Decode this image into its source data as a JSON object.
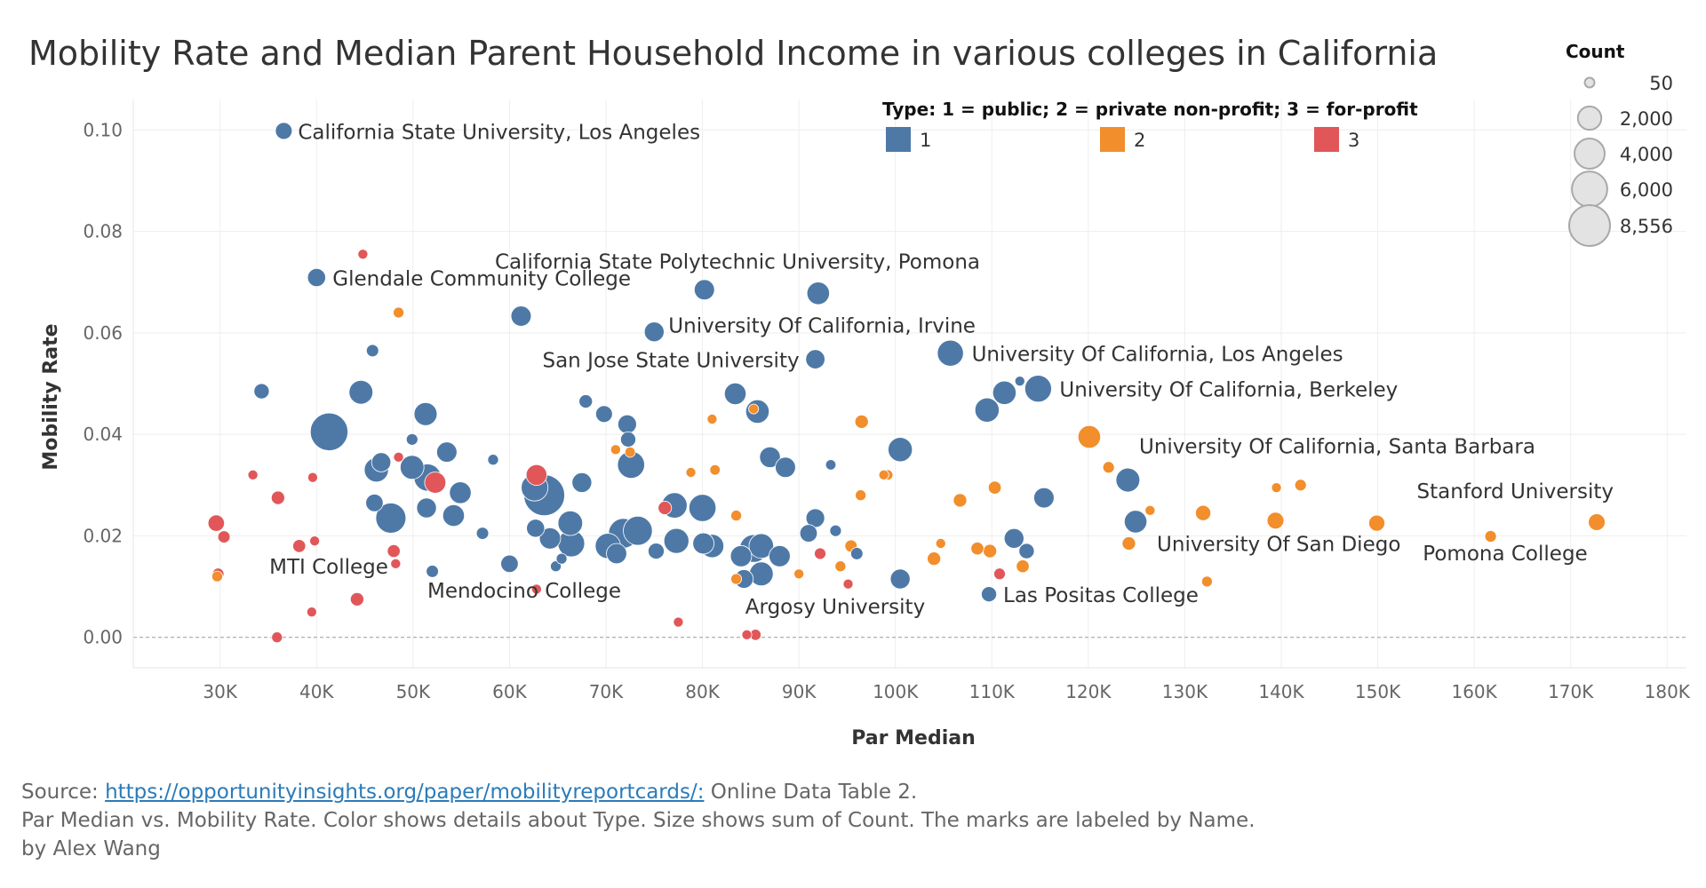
{
  "title": "Mobility Rate and Median Parent Household Income in various colleges in California",
  "footer": {
    "source_prefix": "Source: ",
    "source_link": "https://opportunityinsights.org/paper/mobilityreportcards/:",
    "source_suffix": " Online Data Table 2.",
    "description": "Par Median vs. Mobility Rate.  Color shows details about Type.  Size shows sum of Count.  The marks are labeled by Name.",
    "byline": "by Alex Wang"
  },
  "chart_data": {
    "type": "scatter",
    "xlabel": "Par Median",
    "ylabel": "Mobility Rate",
    "xlim": [
      21000,
      182000
    ],
    "ylim": [
      -0.006,
      0.106
    ],
    "x_ticks": [
      30000,
      40000,
      50000,
      60000,
      70000,
      80000,
      90000,
      100000,
      110000,
      120000,
      130000,
      140000,
      150000,
      160000,
      170000,
      180000
    ],
    "x_tick_labels": [
      "30K",
      "40K",
      "50K",
      "60K",
      "70K",
      "80K",
      "90K",
      "100K",
      "110K",
      "120K",
      "130K",
      "140K",
      "150K",
      "160K",
      "170K",
      "180K"
    ],
    "y_ticks": [
      0.0,
      0.02,
      0.04,
      0.06,
      0.08,
      0.1
    ],
    "y_tick_labels": [
      "0.00",
      "0.02",
      "0.04",
      "0.06",
      "0.08",
      "0.10"
    ],
    "grid": true,
    "zero_line": "dashed",
    "color_legend": {
      "title": "Type: 1 = public; 2 = private non-profit; 3 = for-profit",
      "placement": "top",
      "items": [
        {
          "label": "1",
          "type": 1,
          "color": "#4e79a7"
        },
        {
          "label": "2",
          "type": 2,
          "color": "#f28e2b"
        },
        {
          "label": "3",
          "type": 3,
          "color": "#e15759"
        }
      ]
    },
    "size_legend": {
      "title": "Count",
      "placement": "top-right",
      "items": [
        {
          "label": "50",
          "value": 50
        },
        {
          "label": "2,000",
          "value": 2000
        },
        {
          "label": "4,000",
          "value": 4000
        },
        {
          "label": "6,000",
          "value": 6000
        },
        {
          "label": "8,556",
          "value": 8556
        }
      ],
      "max_count": 8556
    },
    "points": [
      {
        "x": 36600,
        "y": 0.0998,
        "type": 1,
        "count": 700,
        "name": "California State University, Los Angeles"
      },
      {
        "x": 40000,
        "y": 0.0709,
        "type": 1,
        "count": 900,
        "name": "Glendale Community College"
      },
      {
        "x": 80200,
        "y": 0.0685,
        "type": 1,
        "count": 1300,
        "name": ""
      },
      {
        "x": 92000,
        "y": 0.0678,
        "type": 1,
        "count": 1800,
        "name": "California State Polytechnic University, Pomona"
      },
      {
        "x": 75000,
        "y": 0.0602,
        "type": 1,
        "count": 1200,
        "name": "University Of California, Irvine"
      },
      {
        "x": 61200,
        "y": 0.0633,
        "type": 1,
        "count": 1300,
        "name": ""
      },
      {
        "x": 91700,
        "y": 0.0548,
        "type": 1,
        "count": 1100,
        "name": "San Jose State University"
      },
      {
        "x": 105700,
        "y": 0.056,
        "type": 1,
        "count": 2700,
        "name": "University Of California, Los Angeles"
      },
      {
        "x": 114800,
        "y": 0.049,
        "type": 1,
        "count": 2900,
        "name": "University Of California, Berkeley"
      },
      {
        "x": 111300,
        "y": 0.0482,
        "type": 1,
        "count": 2000,
        "name": ""
      },
      {
        "x": 109500,
        "y": 0.0448,
        "type": 1,
        "count": 2200,
        "name": ""
      },
      {
        "x": 120100,
        "y": 0.0395,
        "type": 2,
        "count": 1800,
        "name": ""
      },
      {
        "x": 124100,
        "y": 0.031,
        "type": 1,
        "count": 2100,
        "name": "University Of California, Santa Barbara"
      },
      {
        "x": 172700,
        "y": 0.0227,
        "type": 2,
        "count": 700,
        "name": "Stanford University"
      },
      {
        "x": 124900,
        "y": 0.0228,
        "type": 1,
        "count": 1800,
        "name": "University Of San Diego"
      },
      {
        "x": 161700,
        "y": 0.0199,
        "type": 2,
        "count": 150,
        "name": "Pomona College"
      },
      {
        "x": 109700,
        "y": 0.0085,
        "type": 1,
        "count": 500,
        "name": "Las Positas College"
      },
      {
        "x": 29600,
        "y": 0.0225,
        "type": 3,
        "count": 650,
        "name": ""
      },
      {
        "x": 30400,
        "y": 0.0198,
        "type": 3,
        "count": 200,
        "name": ""
      },
      {
        "x": 38200,
        "y": 0.018,
        "type": 3,
        "count": 250,
        "name": "MTI College"
      },
      {
        "x": 34300,
        "y": 0.0485,
        "type": 1,
        "count": 500,
        "name": ""
      },
      {
        "x": 62800,
        "y": 0.0095,
        "type": 3,
        "count": 60,
        "name": "Mendocino College"
      },
      {
        "x": 85500,
        "y": 0.0005,
        "type": 3,
        "count": 120,
        "name": "Argosy University"
      },
      {
        "x": 41300,
        "y": 0.0405,
        "type": 1,
        "count": 7000,
        "name": ""
      },
      {
        "x": 44600,
        "y": 0.0483,
        "type": 1,
        "count": 2100,
        "name": ""
      },
      {
        "x": 45800,
        "y": 0.0565,
        "type": 1,
        "count": 200,
        "name": ""
      },
      {
        "x": 51300,
        "y": 0.044,
        "type": 1,
        "count": 1900,
        "name": ""
      },
      {
        "x": 49900,
        "y": 0.039,
        "type": 1,
        "count": 150,
        "name": ""
      },
      {
        "x": 46200,
        "y": 0.033,
        "type": 1,
        "count": 2200,
        "name": ""
      },
      {
        "x": 46700,
        "y": 0.0345,
        "type": 1,
        "count": 1100,
        "name": ""
      },
      {
        "x": 49900,
        "y": 0.0335,
        "type": 1,
        "count": 2100,
        "name": ""
      },
      {
        "x": 51500,
        "y": 0.0315,
        "type": 1,
        "count": 3000,
        "name": ""
      },
      {
        "x": 52300,
        "y": 0.0305,
        "type": 3,
        "count": 1500,
        "name": ""
      },
      {
        "x": 53500,
        "y": 0.0365,
        "type": 1,
        "count": 1300,
        "name": ""
      },
      {
        "x": 54900,
        "y": 0.0285,
        "type": 1,
        "count": 1600,
        "name": ""
      },
      {
        "x": 46000,
        "y": 0.0265,
        "type": 1,
        "count": 800,
        "name": ""
      },
      {
        "x": 47700,
        "y": 0.0235,
        "type": 1,
        "count": 4000,
        "name": ""
      },
      {
        "x": 51400,
        "y": 0.0255,
        "type": 1,
        "count": 1200,
        "name": ""
      },
      {
        "x": 54200,
        "y": 0.024,
        "type": 1,
        "count": 1600,
        "name": ""
      },
      {
        "x": 52000,
        "y": 0.013,
        "type": 1,
        "count": 200,
        "name": ""
      },
      {
        "x": 57200,
        "y": 0.0205,
        "type": 1,
        "count": 200,
        "name": ""
      },
      {
        "x": 58300,
        "y": 0.035,
        "type": 1,
        "count": 100,
        "name": ""
      },
      {
        "x": 60000,
        "y": 0.0145,
        "type": 1,
        "count": 800,
        "name": ""
      },
      {
        "x": 62800,
        "y": 0.032,
        "type": 3,
        "count": 1400,
        "name": ""
      },
      {
        "x": 62600,
        "y": 0.0295,
        "type": 1,
        "count": 2900,
        "name": ""
      },
      {
        "x": 63600,
        "y": 0.028,
        "type": 1,
        "count": 8500,
        "name": ""
      },
      {
        "x": 62700,
        "y": 0.0215,
        "type": 1,
        "count": 900,
        "name": ""
      },
      {
        "x": 64200,
        "y": 0.0195,
        "type": 1,
        "count": 1500,
        "name": ""
      },
      {
        "x": 64800,
        "y": 0.014,
        "type": 1,
        "count": 100,
        "name": ""
      },
      {
        "x": 65400,
        "y": 0.0155,
        "type": 1,
        "count": 100,
        "name": ""
      },
      {
        "x": 66300,
        "y": 0.0225,
        "type": 1,
        "count": 2300,
        "name": ""
      },
      {
        "x": 66400,
        "y": 0.0185,
        "type": 1,
        "count": 2900,
        "name": ""
      },
      {
        "x": 67500,
        "y": 0.0305,
        "type": 1,
        "count": 1200,
        "name": ""
      },
      {
        "x": 67900,
        "y": 0.0465,
        "type": 1,
        "count": 300,
        "name": ""
      },
      {
        "x": 69800,
        "y": 0.044,
        "type": 1,
        "count": 700,
        "name": ""
      },
      {
        "x": 72200,
        "y": 0.042,
        "type": 1,
        "count": 1000,
        "name": ""
      },
      {
        "x": 72300,
        "y": 0.039,
        "type": 1,
        "count": 500,
        "name": ""
      },
      {
        "x": 72600,
        "y": 0.034,
        "type": 1,
        "count": 3000,
        "name": ""
      },
      {
        "x": 70200,
        "y": 0.018,
        "type": 1,
        "count": 2500,
        "name": ""
      },
      {
        "x": 71100,
        "y": 0.0165,
        "type": 1,
        "count": 1300,
        "name": ""
      },
      {
        "x": 71800,
        "y": 0.0205,
        "type": 1,
        "count": 3800,
        "name": ""
      },
      {
        "x": 73300,
        "y": 0.021,
        "type": 1,
        "count": 3600,
        "name": ""
      },
      {
        "x": 75200,
        "y": 0.017,
        "type": 1,
        "count": 600,
        "name": ""
      },
      {
        "x": 76100,
        "y": 0.0255,
        "type": 3,
        "count": 300,
        "name": ""
      },
      {
        "x": 77100,
        "y": 0.026,
        "type": 1,
        "count": 2500,
        "name": ""
      },
      {
        "x": 77300,
        "y": 0.019,
        "type": 1,
        "count": 2400,
        "name": ""
      },
      {
        "x": 80000,
        "y": 0.0255,
        "type": 1,
        "count": 3000,
        "name": ""
      },
      {
        "x": 80100,
        "y": 0.0185,
        "type": 1,
        "count": 1500,
        "name": ""
      },
      {
        "x": 81000,
        "y": 0.018,
        "type": 1,
        "count": 2000,
        "name": ""
      },
      {
        "x": 83400,
        "y": 0.048,
        "type": 1,
        "count": 1600,
        "name": ""
      },
      {
        "x": 85700,
        "y": 0.0445,
        "type": 1,
        "count": 2000,
        "name": ""
      },
      {
        "x": 84000,
        "y": 0.016,
        "type": 1,
        "count": 1500,
        "name": ""
      },
      {
        "x": 85300,
        "y": 0.0175,
        "type": 1,
        "count": 3200,
        "name": ""
      },
      {
        "x": 86100,
        "y": 0.018,
        "type": 1,
        "count": 2300,
        "name": ""
      },
      {
        "x": 84300,
        "y": 0.0115,
        "type": 1,
        "count": 1000,
        "name": ""
      },
      {
        "x": 86100,
        "y": 0.0125,
        "type": 1,
        "count": 2100,
        "name": ""
      },
      {
        "x": 87000,
        "y": 0.0355,
        "type": 1,
        "count": 1400,
        "name": ""
      },
      {
        "x": 88600,
        "y": 0.0335,
        "type": 1,
        "count": 1300,
        "name": ""
      },
      {
        "x": 88000,
        "y": 0.016,
        "type": 1,
        "count": 1500,
        "name": ""
      },
      {
        "x": 91700,
        "y": 0.0235,
        "type": 1,
        "count": 1000,
        "name": ""
      },
      {
        "x": 91000,
        "y": 0.0205,
        "type": 1,
        "count": 800,
        "name": ""
      },
      {
        "x": 92200,
        "y": 0.0165,
        "type": 3,
        "count": 150,
        "name": ""
      },
      {
        "x": 93300,
        "y": 0.034,
        "type": 1,
        "count": 80,
        "name": ""
      },
      {
        "x": 93800,
        "y": 0.021,
        "type": 1,
        "count": 150,
        "name": ""
      },
      {
        "x": 95400,
        "y": 0.018,
        "type": 2,
        "count": 200,
        "name": ""
      },
      {
        "x": 96000,
        "y": 0.0165,
        "type": 1,
        "count": 200,
        "name": ""
      },
      {
        "x": 96500,
        "y": 0.0425,
        "type": 2,
        "count": 300,
        "name": ""
      },
      {
        "x": 96400,
        "y": 0.028,
        "type": 2,
        "count": 100,
        "name": ""
      },
      {
        "x": 99200,
        "y": 0.032,
        "type": 2,
        "count": 80,
        "name": ""
      },
      {
        "x": 100500,
        "y": 0.037,
        "type": 1,
        "count": 2200,
        "name": ""
      },
      {
        "x": 100500,
        "y": 0.0115,
        "type": 1,
        "count": 1200,
        "name": ""
      },
      {
        "x": 104000,
        "y": 0.0155,
        "type": 2,
        "count": 300,
        "name": ""
      },
      {
        "x": 106700,
        "y": 0.027,
        "type": 2,
        "count": 300,
        "name": ""
      },
      {
        "x": 108500,
        "y": 0.0175,
        "type": 2,
        "count": 250,
        "name": ""
      },
      {
        "x": 109800,
        "y": 0.017,
        "type": 2,
        "count": 300,
        "name": ""
      },
      {
        "x": 110300,
        "y": 0.0295,
        "type": 2,
        "count": 250,
        "name": ""
      },
      {
        "x": 110800,
        "y": 0.0125,
        "type": 3,
        "count": 150,
        "name": ""
      },
      {
        "x": 112300,
        "y": 0.0195,
        "type": 1,
        "count": 1200,
        "name": ""
      },
      {
        "x": 113600,
        "y": 0.017,
        "type": 1,
        "count": 500,
        "name": ""
      },
      {
        "x": 113200,
        "y": 0.014,
        "type": 2,
        "count": 250,
        "name": ""
      },
      {
        "x": 115400,
        "y": 0.0275,
        "type": 1,
        "count": 1300,
        "name": ""
      },
      {
        "x": 122100,
        "y": 0.0335,
        "type": 2,
        "count": 150,
        "name": ""
      },
      {
        "x": 124200,
        "y": 0.0185,
        "type": 2,
        "count": 300,
        "name": ""
      },
      {
        "x": 126400,
        "y": 0.025,
        "type": 2,
        "count": 60,
        "name": ""
      },
      {
        "x": 131900,
        "y": 0.0245,
        "type": 2,
        "count": 500,
        "name": ""
      },
      {
        "x": 132300,
        "y": 0.011,
        "type": 2,
        "count": 100,
        "name": ""
      },
      {
        "x": 139400,
        "y": 0.023,
        "type": 2,
        "count": 700,
        "name": ""
      },
      {
        "x": 142000,
        "y": 0.03,
        "type": 2,
        "count": 150,
        "name": ""
      },
      {
        "x": 149900,
        "y": 0.0225,
        "type": 2,
        "count": 600,
        "name": ""
      },
      {
        "x": 29700,
        "y": 0.012,
        "type": 2,
        "count": 100,
        "name": ""
      },
      {
        "x": 29800,
        "y": 0.0125,
        "type": 3,
        "count": 150,
        "name": ""
      },
      {
        "x": 33400,
        "y": 0.032,
        "type": 3,
        "count": 60,
        "name": ""
      },
      {
        "x": 36000,
        "y": 0.0275,
        "type": 3,
        "count": 300,
        "name": ""
      },
      {
        "x": 39800,
        "y": 0.019,
        "type": 3,
        "count": 60,
        "name": ""
      },
      {
        "x": 39600,
        "y": 0.0315,
        "type": 3,
        "count": 60,
        "name": ""
      },
      {
        "x": 39500,
        "y": 0.005,
        "type": 3,
        "count": 60,
        "name": ""
      },
      {
        "x": 35900,
        "y": 0.0,
        "type": 3,
        "count": 100,
        "name": ""
      },
      {
        "x": 44200,
        "y": 0.0075,
        "type": 3,
        "count": 300,
        "name": ""
      },
      {
        "x": 48000,
        "y": 0.017,
        "type": 3,
        "count": 250,
        "name": ""
      },
      {
        "x": 48200,
        "y": 0.0145,
        "type": 3,
        "count": 60,
        "name": ""
      },
      {
        "x": 44800,
        "y": 0.0755,
        "type": 3,
        "count": 60,
        "name": ""
      },
      {
        "x": 48500,
        "y": 0.064,
        "type": 2,
        "count": 100,
        "name": ""
      },
      {
        "x": 48500,
        "y": 0.0355,
        "type": 3,
        "count": 60,
        "name": ""
      },
      {
        "x": 71000,
        "y": 0.037,
        "type": 2,
        "count": 60,
        "name": ""
      },
      {
        "x": 72500,
        "y": 0.0365,
        "type": 2,
        "count": 80,
        "name": ""
      },
      {
        "x": 78800,
        "y": 0.0325,
        "type": 2,
        "count": 60,
        "name": ""
      },
      {
        "x": 81000,
        "y": 0.043,
        "type": 2,
        "count": 60,
        "name": ""
      },
      {
        "x": 81300,
        "y": 0.033,
        "type": 2,
        "count": 80,
        "name": ""
      },
      {
        "x": 83500,
        "y": 0.024,
        "type": 2,
        "count": 100,
        "name": ""
      },
      {
        "x": 83500,
        "y": 0.0115,
        "type": 2,
        "count": 100,
        "name": ""
      },
      {
        "x": 84600,
        "y": 0.0005,
        "type": 3,
        "count": 60,
        "name": ""
      },
      {
        "x": 77500,
        "y": 0.003,
        "type": 3,
        "count": 60,
        "name": ""
      },
      {
        "x": 85300,
        "y": 0.045,
        "type": 2,
        "count": 60,
        "name": ""
      },
      {
        "x": 90000,
        "y": 0.0125,
        "type": 2,
        "count": 60,
        "name": ""
      },
      {
        "x": 94300,
        "y": 0.014,
        "type": 2,
        "count": 100,
        "name": ""
      },
      {
        "x": 95100,
        "y": 0.0105,
        "type": 3,
        "count": 60,
        "name": ""
      },
      {
        "x": 98800,
        "y": 0.032,
        "type": 2,
        "count": 60,
        "name": ""
      },
      {
        "x": 104700,
        "y": 0.0185,
        "type": 2,
        "count": 60,
        "name": ""
      },
      {
        "x": 112900,
        "y": 0.0505,
        "type": 1,
        "count": 60,
        "name": ""
      },
      {
        "x": 139500,
        "y": 0.0295,
        "type": 2,
        "count": 60,
        "name": ""
      }
    ]
  }
}
